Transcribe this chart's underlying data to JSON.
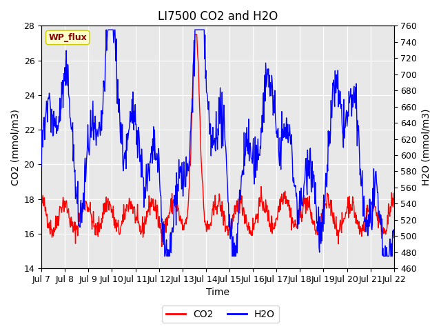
{
  "title": "LI7500 CO2 and H2O",
  "xlabel": "Time",
  "ylabel_left": "CO2 (mmol/m3)",
  "ylabel_right": "H2O (mmol/m3)",
  "co2_ylim": [
    14,
    28
  ],
  "h2o_ylim": [
    460,
    760
  ],
  "co2_yticks": [
    14,
    16,
    18,
    20,
    22,
    24,
    26,
    28
  ],
  "h2o_yticks": [
    460,
    480,
    500,
    520,
    540,
    560,
    580,
    600,
    620,
    640,
    660,
    680,
    700,
    720,
    740,
    760
  ],
  "xtick_labels": [
    "Jul 7",
    "Jul 8",
    "Jul 9",
    "Jul 10",
    "Jul 11",
    "Jul 12",
    "Jul 13",
    "Jul 14",
    "Jul 15",
    "Jul 16",
    "Jul 17",
    "Jul 18",
    "Jul 19",
    "Jul 20",
    "Jul 21",
    "Jul 22"
  ],
  "legend_label_co2": "CO2",
  "legend_label_h2o": "H2O",
  "annotation_text": "WP_flux",
  "annotation_bg": "#ffffcc",
  "annotation_border": "#cccc00",
  "annotation_text_color": "#8b0000",
  "co2_color": "#ff0000",
  "h2o_color": "#0000ff",
  "bg_color": "#ffffff",
  "plot_bg_color": "#e8e8e8",
  "grid_color": "#ffffff",
  "title_fontsize": 12,
  "axis_fontsize": 10,
  "tick_fontsize": 9
}
